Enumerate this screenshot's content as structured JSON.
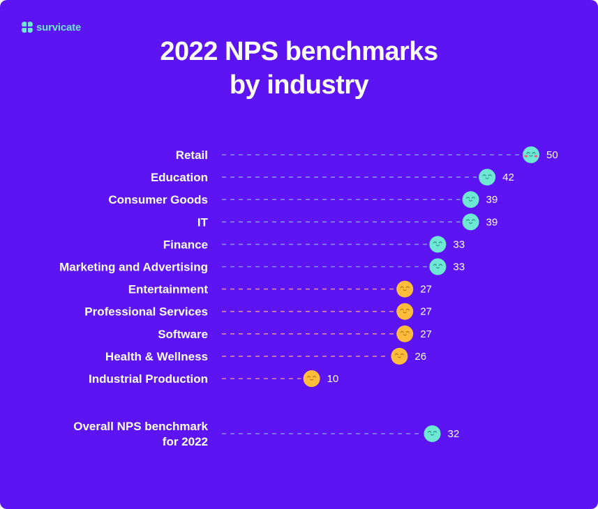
{
  "brand": {
    "name": "survicate",
    "icon": "survicate-logo-icon"
  },
  "title_line1": "2022 NPS benchmarks",
  "title_line2": "by industry",
  "colors": {
    "background": "#5c14f2",
    "high_face": "#6ee7d5",
    "mid_face": "#ffbd3b",
    "high_dash": "#8a8cf0",
    "mid_dash": "#d98aa8",
    "blush": "#f25c8a"
  },
  "chart_data": {
    "type": "dot",
    "categories": [
      "Retail",
      "Education",
      "Consumer Goods",
      "IT",
      "Finance",
      "Marketing and Advertising",
      "Entertainment",
      "Professional Services",
      "Software",
      "Health & Wellness",
      "Industrial Production"
    ],
    "values": [
      50,
      42,
      39,
      39,
      33,
      33,
      27,
      27,
      27,
      26,
      10
    ],
    "overall": {
      "label_line1": "Overall NPS benchmark",
      "label_line2": "for 2022",
      "value": 32
    },
    "title": "2022 NPS benchmarks by industry",
    "xlabel": "",
    "ylabel": "",
    "grid": false,
    "legend": "none"
  }
}
